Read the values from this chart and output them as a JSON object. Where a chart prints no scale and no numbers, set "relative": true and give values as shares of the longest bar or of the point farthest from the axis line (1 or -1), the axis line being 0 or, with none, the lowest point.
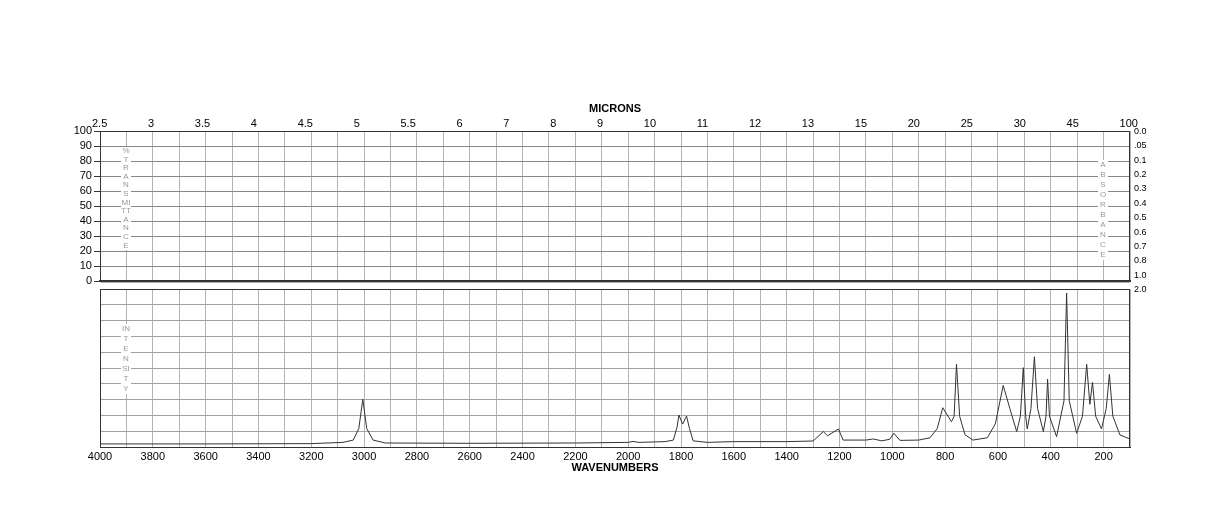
{
  "chart_data": [
    {
      "type": "line",
      "x2label": "MICRONS",
      "ylabel": "%TRANSMITTANCE",
      "y2label": "ABSORBANCE",
      "grid": true,
      "tick_labels": "y",
      "xlim": [
        4000,
        100
      ],
      "xticks": [
        {
          "value": 4000,
          "label": null
        },
        {
          "value": 3900,
          "label": null
        },
        {
          "value": 3800,
          "label": null
        },
        {
          "value": 3700,
          "label": null
        },
        {
          "value": 3600,
          "label": null
        },
        {
          "value": 3500,
          "label": null
        },
        {
          "value": 3400,
          "label": null
        },
        {
          "value": 3300,
          "label": null
        },
        {
          "value": 3200,
          "label": null
        },
        {
          "value": 3100,
          "label": null
        },
        {
          "value": 3000,
          "label": null
        },
        {
          "value": 2900,
          "label": null
        },
        {
          "value": 2800,
          "label": null
        },
        {
          "value": 2700,
          "label": null
        },
        {
          "value": 2600,
          "label": null
        },
        {
          "value": 2500,
          "label": null
        },
        {
          "value": 2400,
          "label": null
        },
        {
          "value": 2300,
          "label": null
        },
        {
          "value": 2200,
          "label": null
        },
        {
          "value": 2100,
          "label": null
        },
        {
          "value": 2000,
          "label": null
        },
        {
          "value": 1900,
          "label": null
        },
        {
          "value": 1800,
          "label": null
        },
        {
          "value": 1700,
          "label": null
        },
        {
          "value": 1600,
          "label": null
        },
        {
          "value": 1500,
          "label": null
        },
        {
          "value": 1400,
          "label": null
        },
        {
          "value": 1300,
          "label": null
        },
        {
          "value": 1200,
          "label": null
        },
        {
          "value": 1100,
          "label": null
        },
        {
          "value": 1000,
          "label": null
        },
        {
          "value": 900,
          "label": null
        },
        {
          "value": 800,
          "label": null
        },
        {
          "value": 700,
          "label": null
        },
        {
          "value": 600,
          "label": null
        },
        {
          "value": 500,
          "label": null
        },
        {
          "value": 400,
          "label": null
        },
        {
          "value": 300,
          "label": null
        },
        {
          "value": 200,
          "label": null
        },
        {
          "value": 100,
          "label": null
        }
      ],
      "annotations": [
        "2.5",
        "3",
        "3.5",
        "4",
        "4.5",
        "5",
        "5.5",
        "6",
        "7",
        "8",
        "9",
        "10",
        "11",
        "12",
        "13",
        "15",
        "20",
        "25",
        "30",
        "45",
        "100",
        "0.0",
        ".05",
        "0.1",
        "0.2",
        "0.3",
        "0.4",
        "0.5",
        "0.6",
        "0.7",
        "0.8",
        "1.0",
        "2.0"
      ],
      "ylim": [
        0,
        100
      ],
      "yticks": [
        0,
        10,
        20,
        30,
        40,
        50,
        60,
        70,
        80,
        90,
        100
      ],
      "xlabel": null
    },
    {
      "type": "line",
      "relative": true,
      "xlabel": "WAVENUMBERS",
      "ylabel": "INTENSITY",
      "grid": true,
      "marker": "none",
      "xlim": [
        4000,
        100
      ],
      "xticks": [
        4000,
        {
          "value": 3900,
          "label": null
        },
        3800,
        {
          "value": 3700,
          "label": null
        },
        3600,
        {
          "value": 3500,
          "label": null
        },
        3400,
        {
          "value": 3300,
          "label": null
        },
        3200,
        {
          "value": 3100,
          "label": null
        },
        3000,
        {
          "value": 2900,
          "label": null
        },
        2800,
        {
          "value": 2700,
          "label": null
        },
        2600,
        {
          "value": 2500,
          "label": null
        },
        2400,
        {
          "value": 2300,
          "label": null
        },
        2200,
        {
          "value": 2100,
          "label": null
        },
        2000,
        {
          "value": 1900,
          "label": null
        },
        1800,
        {
          "value": 1700,
          "label": null
        },
        1600,
        {
          "value": 1500,
          "label": null
        },
        1400,
        {
          "value": 1300,
          "label": null
        },
        1200,
        {
          "value": 1100,
          "label": null
        },
        1000,
        {
          "value": 900,
          "label": null
        },
        800,
        {
          "value": 700,
          "label": null
        },
        600,
        {
          "value": 500,
          "label": null
        },
        400,
        {
          "value": 300,
          "label": null
        },
        200,
        {
          "value": 100,
          "label": null
        }
      ],
      "series": [
        {
          "color": "#333333",
          "x": [
            4000,
            3600,
            3200,
            3080,
            3041,
            3020,
            3005,
            2990,
            2966,
            2920,
            2600,
            2200,
            2000,
            1982,
            1960,
            1860,
            1829,
            1815,
            1808,
            1794,
            1779,
            1768,
            1754,
            1700,
            1600,
            1400,
            1300,
            1261,
            1245,
            1204,
            1186,
            1100,
            1072,
            1040,
            1010,
            994,
            971,
            900,
            857,
            830,
            809,
            776,
            766,
            757,
            745,
            725,
            695,
            640,
            610,
            580,
            555,
            529,
            515,
            504,
            495,
            489,
            475,
            462,
            450,
            428,
            418,
            412,
            405,
            378,
            350,
            340,
            330,
            302,
            280,
            264,
            252,
            242,
            230,
            208,
            190,
            178,
            165,
            138,
            100
          ],
          "values": [
            0.02,
            0.02,
            0.022,
            0.03,
            0.045,
            0.12,
            0.31,
            0.12,
            0.045,
            0.026,
            0.024,
            0.026,
            0.03,
            0.036,
            0.03,
            0.035,
            0.045,
            0.13,
            0.208,
            0.149,
            0.201,
            0.12,
            0.04,
            0.03,
            0.035,
            0.035,
            0.039,
            0.1,
            0.073,
            0.117,
            0.045,
            0.045,
            0.052,
            0.04,
            0.05,
            0.089,
            0.043,
            0.045,
            0.06,
            0.12,
            0.255,
            0.164,
            0.2,
            0.537,
            0.2,
            0.08,
            0.045,
            0.06,
            0.15,
            0.4,
            0.25,
            0.1,
            0.2,
            0.515,
            0.2,
            0.117,
            0.25,
            0.586,
            0.25,
            0.1,
            0.2,
            0.44,
            0.2,
            0.067,
            0.3,
            1.0,
            0.3,
            0.089,
            0.2,
            0.537,
            0.277,
            0.42,
            0.2,
            0.117,
            0.25,
            0.472,
            0.2,
            0.078,
            0.052
          ]
        }
      ]
    }
  ]
}
